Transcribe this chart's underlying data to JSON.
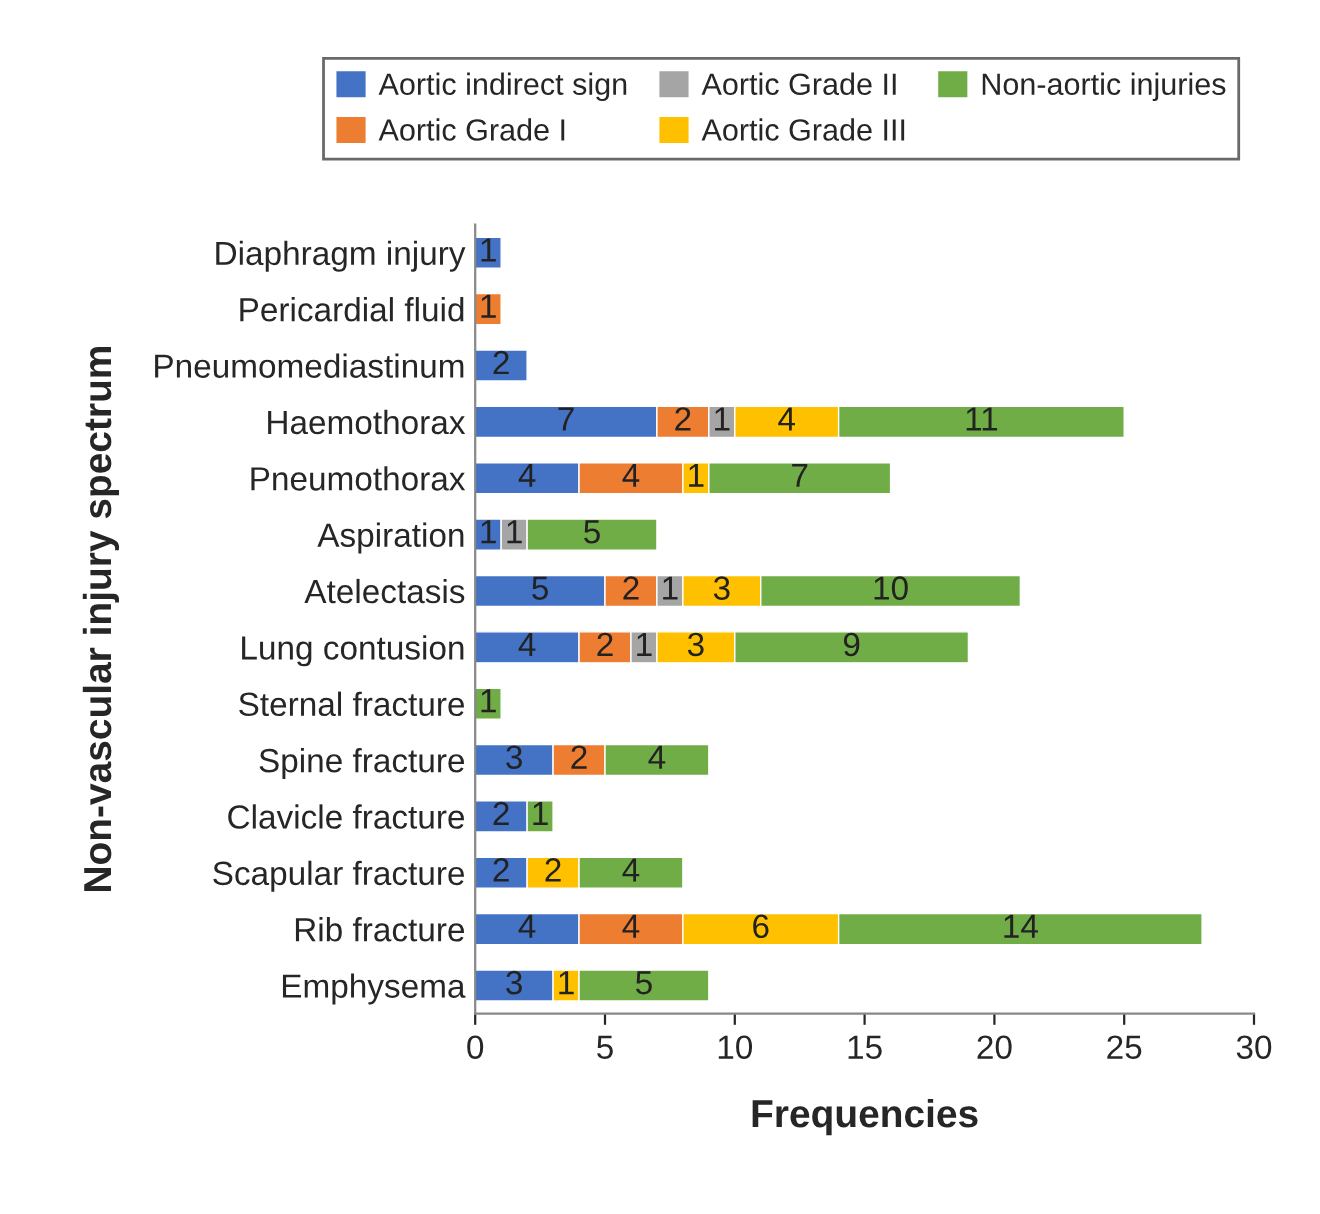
{
  "chart_data": {
    "type": "bar",
    "orientation": "horizontal",
    "stacked": true,
    "xlabel": "Frequencies",
    "ylabel": "Non-vascular injury spectrum",
    "categories": [
      "Diaphragm injury",
      "Pericardial fluid",
      "Pneumomediastinum",
      "Haemothorax",
      "Pneumothorax",
      "Aspiration",
      "Atelectasis",
      "Lung contusion",
      "Sternal fracture",
      "Spine fracture",
      "Clavicle fracture",
      "Scapular fracture",
      "Rib fracture",
      "Emphysema"
    ],
    "series": [
      {
        "name": "Aortic indirect sign",
        "color": "#4472c4",
        "values": [
          1,
          null,
          2,
          7,
          4,
          1,
          5,
          4,
          null,
          3,
          2,
          2,
          4,
          3
        ]
      },
      {
        "name": "Aortic Grade I",
        "color": "#ed7d31",
        "values": [
          null,
          1,
          null,
          2,
          4,
          null,
          2,
          2,
          null,
          2,
          null,
          null,
          4,
          null
        ]
      },
      {
        "name": "Aortic Grade II",
        "color": "#a5a5a5",
        "values": [
          null,
          null,
          null,
          1,
          null,
          1,
          1,
          1,
          null,
          null,
          null,
          null,
          null,
          null
        ]
      },
      {
        "name": "Aortic Grade III",
        "color": "#ffc000",
        "values": [
          null,
          null,
          null,
          4,
          1,
          null,
          3,
          3,
          null,
          null,
          null,
          2,
          6,
          1
        ]
      },
      {
        "name": "Non-aortic injuries",
        "color": "#70ad47",
        "values": [
          null,
          null,
          null,
          11,
          7,
          5,
          10,
          9,
          1,
          4,
          1,
          4,
          14,
          5
        ]
      }
    ],
    "xlim": [
      0,
      30
    ],
    "xticks": [
      0,
      5,
      10,
      15,
      20,
      25,
      30
    ],
    "data_labels": true,
    "legend": "top",
    "grid": false
  }
}
